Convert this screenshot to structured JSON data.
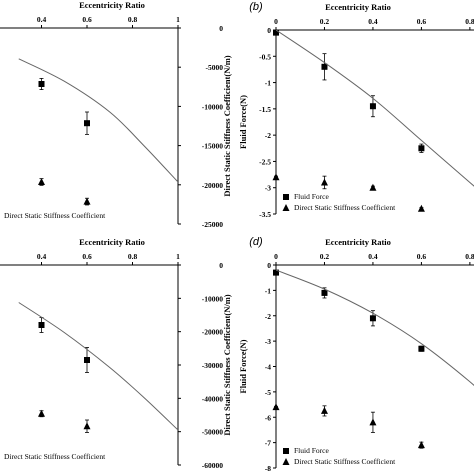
{
  "chart_data": [
    {
      "panel": "a",
      "type": "scatter",
      "panel_label": "",
      "top_axis": {
        "title": "Eccentricity Ratio",
        "range": [
          0,
          1
        ],
        "ticks": [
          0.4,
          0.6,
          0.8,
          1
        ],
        "tick_labels": [
          "0.4",
          "0.6",
          "0.8",
          "1"
        ]
      },
      "left_axis": {
        "title": "",
        "ticks": [],
        "tick_labels": []
      },
      "right_axis": {
        "title": "Direct Static Stiffness Coefficient(N/m)",
        "range": [
          -25000,
          0
        ],
        "ticks": [
          0,
          -5000,
          -10000,
          -15000,
          -20000,
          -25000
        ],
        "tick_labels": [
          "0",
          "-5000",
          "-10000",
          "-15000",
          "-20000",
          "-25000"
        ]
      },
      "left_range": [
        -3.5,
        0
      ],
      "x_view": [
        0.2,
        1
      ],
      "series": [
        {
          "name": "Fluid Force",
          "marker": "square",
          "axis": "left",
          "x": [
            0.4,
            0.6
          ],
          "y": [
            -1.0,
            -1.7
          ],
          "err": [
            0.1,
            0.2
          ]
        },
        {
          "name": "Direct Static Stiffness Coefficient",
          "marker": "triangle",
          "axis": "left",
          "x": [
            0.4,
            0.6
          ],
          "y": [
            -2.75,
            -3.1
          ],
          "err": [
            0.06,
            0.06
          ]
        },
        {
          "name": "",
          "marker": "line",
          "axis": "left",
          "x": [
            0.3,
            0.5,
            0.7,
            0.85,
            1.0
          ],
          "y": [
            -0.55,
            -0.95,
            -1.5,
            -2.1,
            -2.75
          ]
        }
      ],
      "legend": [
        "Direct Static Stiffness Coefficient"
      ]
    },
    {
      "panel": "b",
      "type": "scatter",
      "panel_label": "(b)",
      "top_axis": {
        "title": "Eccentricity Ratio",
        "range": [
          0,
          1
        ],
        "ticks": [
          0,
          0.2,
          0.4,
          0.6,
          0.8
        ],
        "tick_labels": [
          "0",
          "0.2",
          "0.4",
          "0.6",
          "0.8"
        ]
      },
      "left_axis": {
        "title": "Fluid Force(N)",
        "range": [
          -3.5,
          0
        ],
        "ticks": [
          0,
          -0.5,
          -1,
          -1.5,
          -2,
          -2.5,
          -3,
          -3.5
        ],
        "tick_labels": [
          "0",
          "-0.5",
          "-1",
          "-1.5",
          "-2",
          "-2.5",
          "-3",
          "-3.5"
        ]
      },
      "right_axis": {
        "title": "",
        "ticks": [],
        "tick_labels": []
      },
      "left_range": [
        -3.5,
        0
      ],
      "x_view": [
        0,
        0.85
      ],
      "series": [
        {
          "name": "Fluid Force",
          "marker": "square",
          "axis": "left",
          "x": [
            0,
            0.2,
            0.4,
            0.6
          ],
          "y": [
            -0.05,
            -0.7,
            -1.45,
            -2.25
          ],
          "err": [
            0.02,
            0.25,
            0.2,
            0.08
          ]
        },
        {
          "name": "Direct Static Stiffness Coefficient",
          "marker": "triangle",
          "axis": "left",
          "x": [
            0,
            0.2,
            0.4,
            0.6
          ],
          "y": [
            -2.8,
            -2.9,
            -3.0,
            -3.4
          ],
          "err": [
            0.02,
            0.12,
            0.03,
            0.02
          ]
        },
        {
          "name": "",
          "marker": "line",
          "axis": "left",
          "x": [
            0,
            0.2,
            0.4,
            0.6,
            0.8,
            0.85
          ],
          "y": [
            0,
            -0.62,
            -1.3,
            -2.1,
            -2.9,
            -3.1
          ]
        }
      ],
      "legend": [
        "Fluid Force",
        "Direct Static Stiffness Coefficient"
      ]
    },
    {
      "panel": "c",
      "type": "scatter",
      "panel_label": "",
      "top_axis": {
        "title": "Eccentricity Ratio",
        "range": [
          0,
          1
        ],
        "ticks": [
          0.4,
          0.6,
          0.8,
          1
        ],
        "tick_labels": [
          "0.4",
          "0.6",
          "0.8",
          "1"
        ]
      },
      "left_axis": {
        "title": "",
        "ticks": [],
        "tick_labels": []
      },
      "right_axis": {
        "title": "Direct Static Stiffness Coefficient(N/m)",
        "range": [
          -60000,
          0
        ],
        "ticks": [
          0,
          -10000,
          -20000,
          -30000,
          -40000,
          -50000,
          -60000
        ],
        "tick_labels": [
          "0",
          "-10000",
          "-20000",
          "-30000",
          "-40000",
          "-50000",
          "-60000"
        ]
      },
      "left_range": [
        -8,
        0
      ],
      "x_view": [
        0.2,
        1
      ],
      "series": [
        {
          "name": "Fluid Force",
          "marker": "square",
          "axis": "left",
          "x": [
            0.4,
            0.6
          ],
          "y": [
            -2.4,
            -3.8
          ],
          "err": [
            0.3,
            0.5
          ]
        },
        {
          "name": "Direct Static Stiffness Coefficient",
          "marker": "triangle",
          "axis": "left",
          "x": [
            0.4,
            0.6
          ],
          "y": [
            -5.95,
            -6.45
          ],
          "err": [
            0.12,
            0.25
          ]
        },
        {
          "name": "",
          "marker": "line",
          "axis": "left",
          "x": [
            0.3,
            0.5,
            0.7,
            0.85,
            1.0
          ],
          "y": [
            -1.5,
            -2.7,
            -4.1,
            -5.3,
            -6.6
          ]
        }
      ],
      "legend": [
        "Direct Static Stiffness Coefficient"
      ]
    },
    {
      "panel": "d",
      "type": "scatter",
      "panel_label": "(d)",
      "top_axis": {
        "title": "Eccentricity Ratio",
        "range": [
          0,
          1
        ],
        "ticks": [
          0,
          0.2,
          0.4,
          0.6,
          0.8
        ],
        "tick_labels": [
          "0",
          "0.2",
          "0.4",
          "0.6",
          "0.8"
        ]
      },
      "left_axis": {
        "title": "Fluid Force(N)",
        "range": [
          -8,
          0
        ],
        "ticks": [
          0,
          -1,
          -2,
          -3,
          -4,
          -5,
          -6,
          -7,
          -8
        ],
        "tick_labels": [
          "0",
          "-1",
          "-2",
          "-3",
          "-4",
          "-5",
          "-6",
          "-7",
          "-8"
        ]
      },
      "right_axis": {
        "title": "",
        "ticks": [],
        "tick_labels": []
      },
      "left_range": [
        -8,
        0
      ],
      "x_view": [
        0,
        0.85
      ],
      "series": [
        {
          "name": "Fluid Force",
          "marker": "square",
          "axis": "left",
          "x": [
            0,
            0.2,
            0.4,
            0.6
          ],
          "y": [
            -0.3,
            -1.1,
            -2.1,
            -3.3
          ],
          "err": [
            0.03,
            0.2,
            0.3,
            0.1
          ]
        },
        {
          "name": "Direct Static Stiffness Coefficient",
          "marker": "triangle",
          "axis": "left",
          "x": [
            0,
            0.2,
            0.4,
            0.6
          ],
          "y": [
            -5.6,
            -5.75,
            -6.2,
            -7.1
          ],
          "err": [
            0.02,
            0.2,
            0.4,
            0.12
          ]
        },
        {
          "name": "",
          "marker": "line",
          "axis": "left",
          "x": [
            0,
            0.2,
            0.4,
            0.6,
            0.8,
            0.85
          ],
          "y": [
            -0.2,
            -0.95,
            -1.9,
            -3.1,
            -4.6,
            -5.1
          ]
        }
      ],
      "legend": [
        "Fluid Force",
        "Direct Static Stiffness Coefficient"
      ]
    }
  ]
}
